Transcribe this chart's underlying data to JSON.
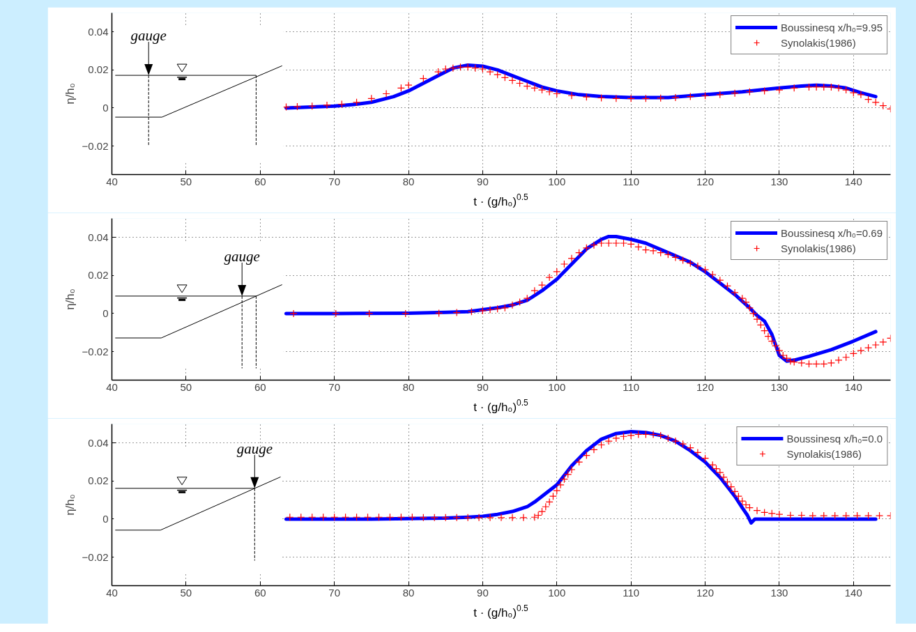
{
  "chart_data": [
    {
      "type": "line",
      "xlabel": "t · (g/h₀)$^{0.5}$",
      "ylabel": "η/h₀",
      "annotations": [
        "gauge"
      ],
      "xlim": [
        40,
        145
      ],
      "ylim": [
        -0.035,
        0.05
      ],
      "xticks": [
        40,
        50,
        60,
        70,
        80,
        90,
        100,
        110,
        120,
        130,
        140
      ],
      "yticks": [
        -0.02,
        0,
        0.02,
        0.04
      ],
      "grid": true,
      "legend": "top right",
      "series": [
        {
          "name": "Boussinesq x/h₀=9.95",
          "type": "line",
          "color": "#0000ff",
          "marker": "none",
          "line_style": "solid",
          "x": [
            63.5,
            67,
            70,
            73,
            75,
            78,
            80,
            82,
            84,
            86,
            88,
            90,
            92,
            94,
            96,
            98,
            100,
            103,
            106,
            110,
            115,
            120,
            125,
            130,
            133,
            135,
            137,
            139,
            141,
            143
          ],
          "values": [
            0,
            0.0005,
            0.001,
            0.002,
            0.003,
            0.006,
            0.009,
            0.013,
            0.017,
            0.021,
            0.0225,
            0.022,
            0.02,
            0.017,
            0.014,
            0.011,
            0.009,
            0.007,
            0.006,
            0.0055,
            0.0055,
            0.007,
            0.0085,
            0.0105,
            0.0115,
            0.012,
            0.0115,
            0.0105,
            0.008,
            0.006
          ]
        },
        {
          "name": "Synolakis(1986)",
          "type": "scatter",
          "color": "#ff0000",
          "marker": "cross",
          "x": [
            63.5,
            65,
            67,
            69,
            71,
            73,
            75,
            77,
            79,
            80,
            82,
            84,
            85,
            86,
            87,
            88,
            89,
            90,
            91,
            92,
            93,
            94,
            95,
            96,
            97,
            98,
            99,
            100,
            102,
            104,
            106,
            108,
            110,
            112,
            114,
            116,
            118,
            120,
            122,
            124,
            126,
            128,
            130,
            132,
            134,
            135,
            136,
            137,
            138,
            139,
            140,
            141,
            142,
            143,
            144,
            145
          ],
          "values": [
            0.0005,
            0.0007,
            0.001,
            0.0015,
            0.002,
            0.003,
            0.005,
            0.0075,
            0.0105,
            0.012,
            0.0155,
            0.019,
            0.0205,
            0.021,
            0.0215,
            0.0215,
            0.021,
            0.0205,
            0.019,
            0.0175,
            0.016,
            0.0145,
            0.013,
            0.0115,
            0.0105,
            0.0095,
            0.0085,
            0.0075,
            0.0065,
            0.0058,
            0.0053,
            0.005,
            0.005,
            0.005,
            0.0052,
            0.0055,
            0.006,
            0.0065,
            0.007,
            0.0078,
            0.0085,
            0.009,
            0.0095,
            0.0105,
            0.011,
            0.011,
            0.011,
            0.011,
            0.0105,
            0.0095,
            0.008,
            0.007,
            0.0045,
            0.003,
            0.0012,
            -0.0005
          ]
        }
      ]
    },
    {
      "type": "line",
      "xlabel": "t · (g/h₀)$^{0.5}$",
      "ylabel": "η/h₀",
      "annotations": [
        "gauge"
      ],
      "xlim": [
        40,
        145
      ],
      "ylim": [
        -0.035,
        0.05
      ],
      "xticks": [
        40,
        50,
        60,
        70,
        80,
        90,
        100,
        110,
        120,
        130,
        140
      ],
      "yticks": [
        -0.02,
        0,
        0.02,
        0.04
      ],
      "grid": true,
      "legend": "top right",
      "series": [
        {
          "name": "Boussinesq x/h₀=0.69",
          "type": "line",
          "color": "#0000ff",
          "marker": "none",
          "line_style": "solid",
          "x": [
            63.5,
            70,
            80,
            85,
            88,
            90,
            92,
            94,
            96,
            98,
            100,
            102,
            104,
            106,
            107,
            108,
            110,
            112,
            115,
            118,
            120,
            122,
            124,
            126,
            127,
            128,
            129,
            130,
            131,
            132,
            134,
            137,
            140,
            143
          ],
          "values": [
            0,
            0,
            0.0002,
            0.0006,
            0.001,
            0.002,
            0.003,
            0.0045,
            0.007,
            0.012,
            0.018,
            0.026,
            0.034,
            0.039,
            0.0405,
            0.0405,
            0.039,
            0.037,
            0.032,
            0.027,
            0.022,
            0.016,
            0.01,
            0.003,
            -0.001,
            -0.004,
            -0.011,
            -0.022,
            -0.025,
            -0.0245,
            -0.0225,
            -0.019,
            -0.0145,
            -0.0095
          ]
        },
        {
          "name": "Synolakis(1986)",
          "type": "scatter",
          "color": "#ff0000",
          "marker": "cross",
          "x": [
            64.5,
            70.2,
            74.7,
            79.6,
            84.1,
            86.5,
            88.5,
            90,
            91,
            92,
            93,
            94,
            95,
            96,
            97,
            98,
            99,
            100,
            101,
            102,
            103,
            104,
            105,
            106,
            107,
            108,
            109,
            110,
            111,
            112,
            113,
            114,
            115,
            116,
            117,
            118,
            119,
            120,
            121,
            122,
            123,
            124,
            125,
            125.5,
            126,
            126.5,
            127,
            127.5,
            128,
            128.5,
            129,
            129.5,
            130,
            130.5,
            131,
            131.5,
            132,
            133,
            134,
            135,
            136,
            137,
            138,
            139,
            140,
            141,
            142,
            143,
            144,
            145
          ],
          "values": [
            0,
            0,
            0,
            0,
            0.0002,
            0.0005,
            0.001,
            0.0015,
            0.002,
            0.0025,
            0.003,
            0.0045,
            0.006,
            0.008,
            0.012,
            0.015,
            0.019,
            0.022,
            0.026,
            0.029,
            0.032,
            0.0345,
            0.036,
            0.037,
            0.037,
            0.037,
            0.037,
            0.0365,
            0.035,
            0.0335,
            0.033,
            0.032,
            0.031,
            0.0295,
            0.028,
            0.0265,
            0.025,
            0.023,
            0.0205,
            0.0175,
            0.0145,
            0.011,
            0.008,
            0.006,
            0.003,
            0.0,
            -0.003,
            -0.006,
            -0.009,
            -0.012,
            -0.0145,
            -0.017,
            -0.0195,
            -0.022,
            -0.0235,
            -0.025,
            -0.0255,
            -0.026,
            -0.0265,
            -0.0265,
            -0.0265,
            -0.026,
            -0.0245,
            -0.023,
            -0.021,
            -0.0195,
            -0.018,
            -0.0165,
            -0.015,
            -0.013
          ]
        }
      ]
    },
    {
      "type": "line",
      "xlabel": "t · (g/h₀)$^{0.5}$",
      "ylabel": "η/h₀",
      "annotations": [
        "gauge"
      ],
      "xlim": [
        40,
        145
      ],
      "ylim": [
        -0.035,
        0.05
      ],
      "xticks": [
        40,
        50,
        60,
        70,
        80,
        90,
        100,
        110,
        120,
        130,
        140
      ],
      "yticks": [
        -0.02,
        0,
        0.02,
        0.04
      ],
      "grid": true,
      "legend": "top right",
      "series": [
        {
          "name": "Boussinesq x/h₀=0.0",
          "type": "line",
          "color": "#0000ff",
          "marker": "none",
          "line_style": "solid",
          "x": [
            63.5,
            75,
            85,
            88,
            90,
            92,
            94,
            96,
            97,
            98,
            99,
            100,
            101,
            102,
            103,
            104,
            105,
            106,
            108,
            110,
            112,
            114,
            116,
            118,
            120,
            121,
            122,
            123,
            124,
            125,
            125.7,
            126.2,
            126.7,
            130,
            135,
            143
          ],
          "values": [
            0,
            0,
            0.0005,
            0.001,
            0.0015,
            0.0025,
            0.004,
            0.0065,
            0.009,
            0.012,
            0.015,
            0.018,
            0.023,
            0.028,
            0.032,
            0.036,
            0.039,
            0.042,
            0.045,
            0.046,
            0.0455,
            0.044,
            0.041,
            0.036,
            0.03,
            0.026,
            0.022,
            0.017,
            0.012,
            0.006,
            0.002,
            -0.002,
            0,
            0,
            0,
            0
          ]
        },
        {
          "name": "Synolakis(1986)",
          "type": "scatter",
          "color": "#ff0000",
          "marker": "cross",
          "x": [
            64,
            65.5,
            67,
            68.5,
            70,
            71.5,
            73,
            74.5,
            76,
            77.5,
            79,
            80.5,
            82,
            83.5,
            85,
            86.5,
            88,
            89.5,
            91,
            92.5,
            94,
            95.5,
            97,
            97.5,
            98,
            98.5,
            99,
            99.5,
            100,
            100.5,
            101,
            101.5,
            102,
            103,
            104,
            105,
            106,
            107,
            108,
            109,
            110,
            111,
            112,
            113,
            114,
            115,
            116,
            117,
            118,
            119,
            120,
            121,
            121.5,
            122,
            122.5,
            123,
            123.5,
            124,
            124.5,
            125,
            125.5,
            126,
            127,
            128,
            129,
            130,
            131.5,
            133,
            134.5,
            136,
            137.5,
            139,
            140.5,
            142,
            143.5,
            145
          ],
          "values": [
            0.001,
            0.001,
            0.001,
            0.001,
            0.001,
            0.001,
            0.001,
            0.001,
            0.001,
            0.001,
            0.001,
            0.001,
            0.0008,
            0.0008,
            0.0008,
            0.0008,
            0.0008,
            0.0008,
            0.0008,
            0.0008,
            0.0008,
            0.0008,
            0.001,
            0.002,
            0.004,
            0.0065,
            0.009,
            0.012,
            0.015,
            0.018,
            0.021,
            0.0235,
            0.026,
            0.03,
            0.0335,
            0.0365,
            0.039,
            0.041,
            0.0425,
            0.0435,
            0.044,
            0.0445,
            0.0445,
            0.0445,
            0.044,
            0.0425,
            0.041,
            0.0395,
            0.0375,
            0.035,
            0.032,
            0.0285,
            0.0265,
            0.0245,
            0.022,
            0.0195,
            0.017,
            0.0145,
            0.012,
            0.0095,
            0.0075,
            0.006,
            0.0045,
            0.0035,
            0.003,
            0.0025,
            0.002,
            0.002,
            0.0018,
            0.0018,
            0.0018,
            0.0018,
            0.0018,
            0.0018,
            0.0018,
            0.0018
          ]
        }
      ]
    }
  ]
}
